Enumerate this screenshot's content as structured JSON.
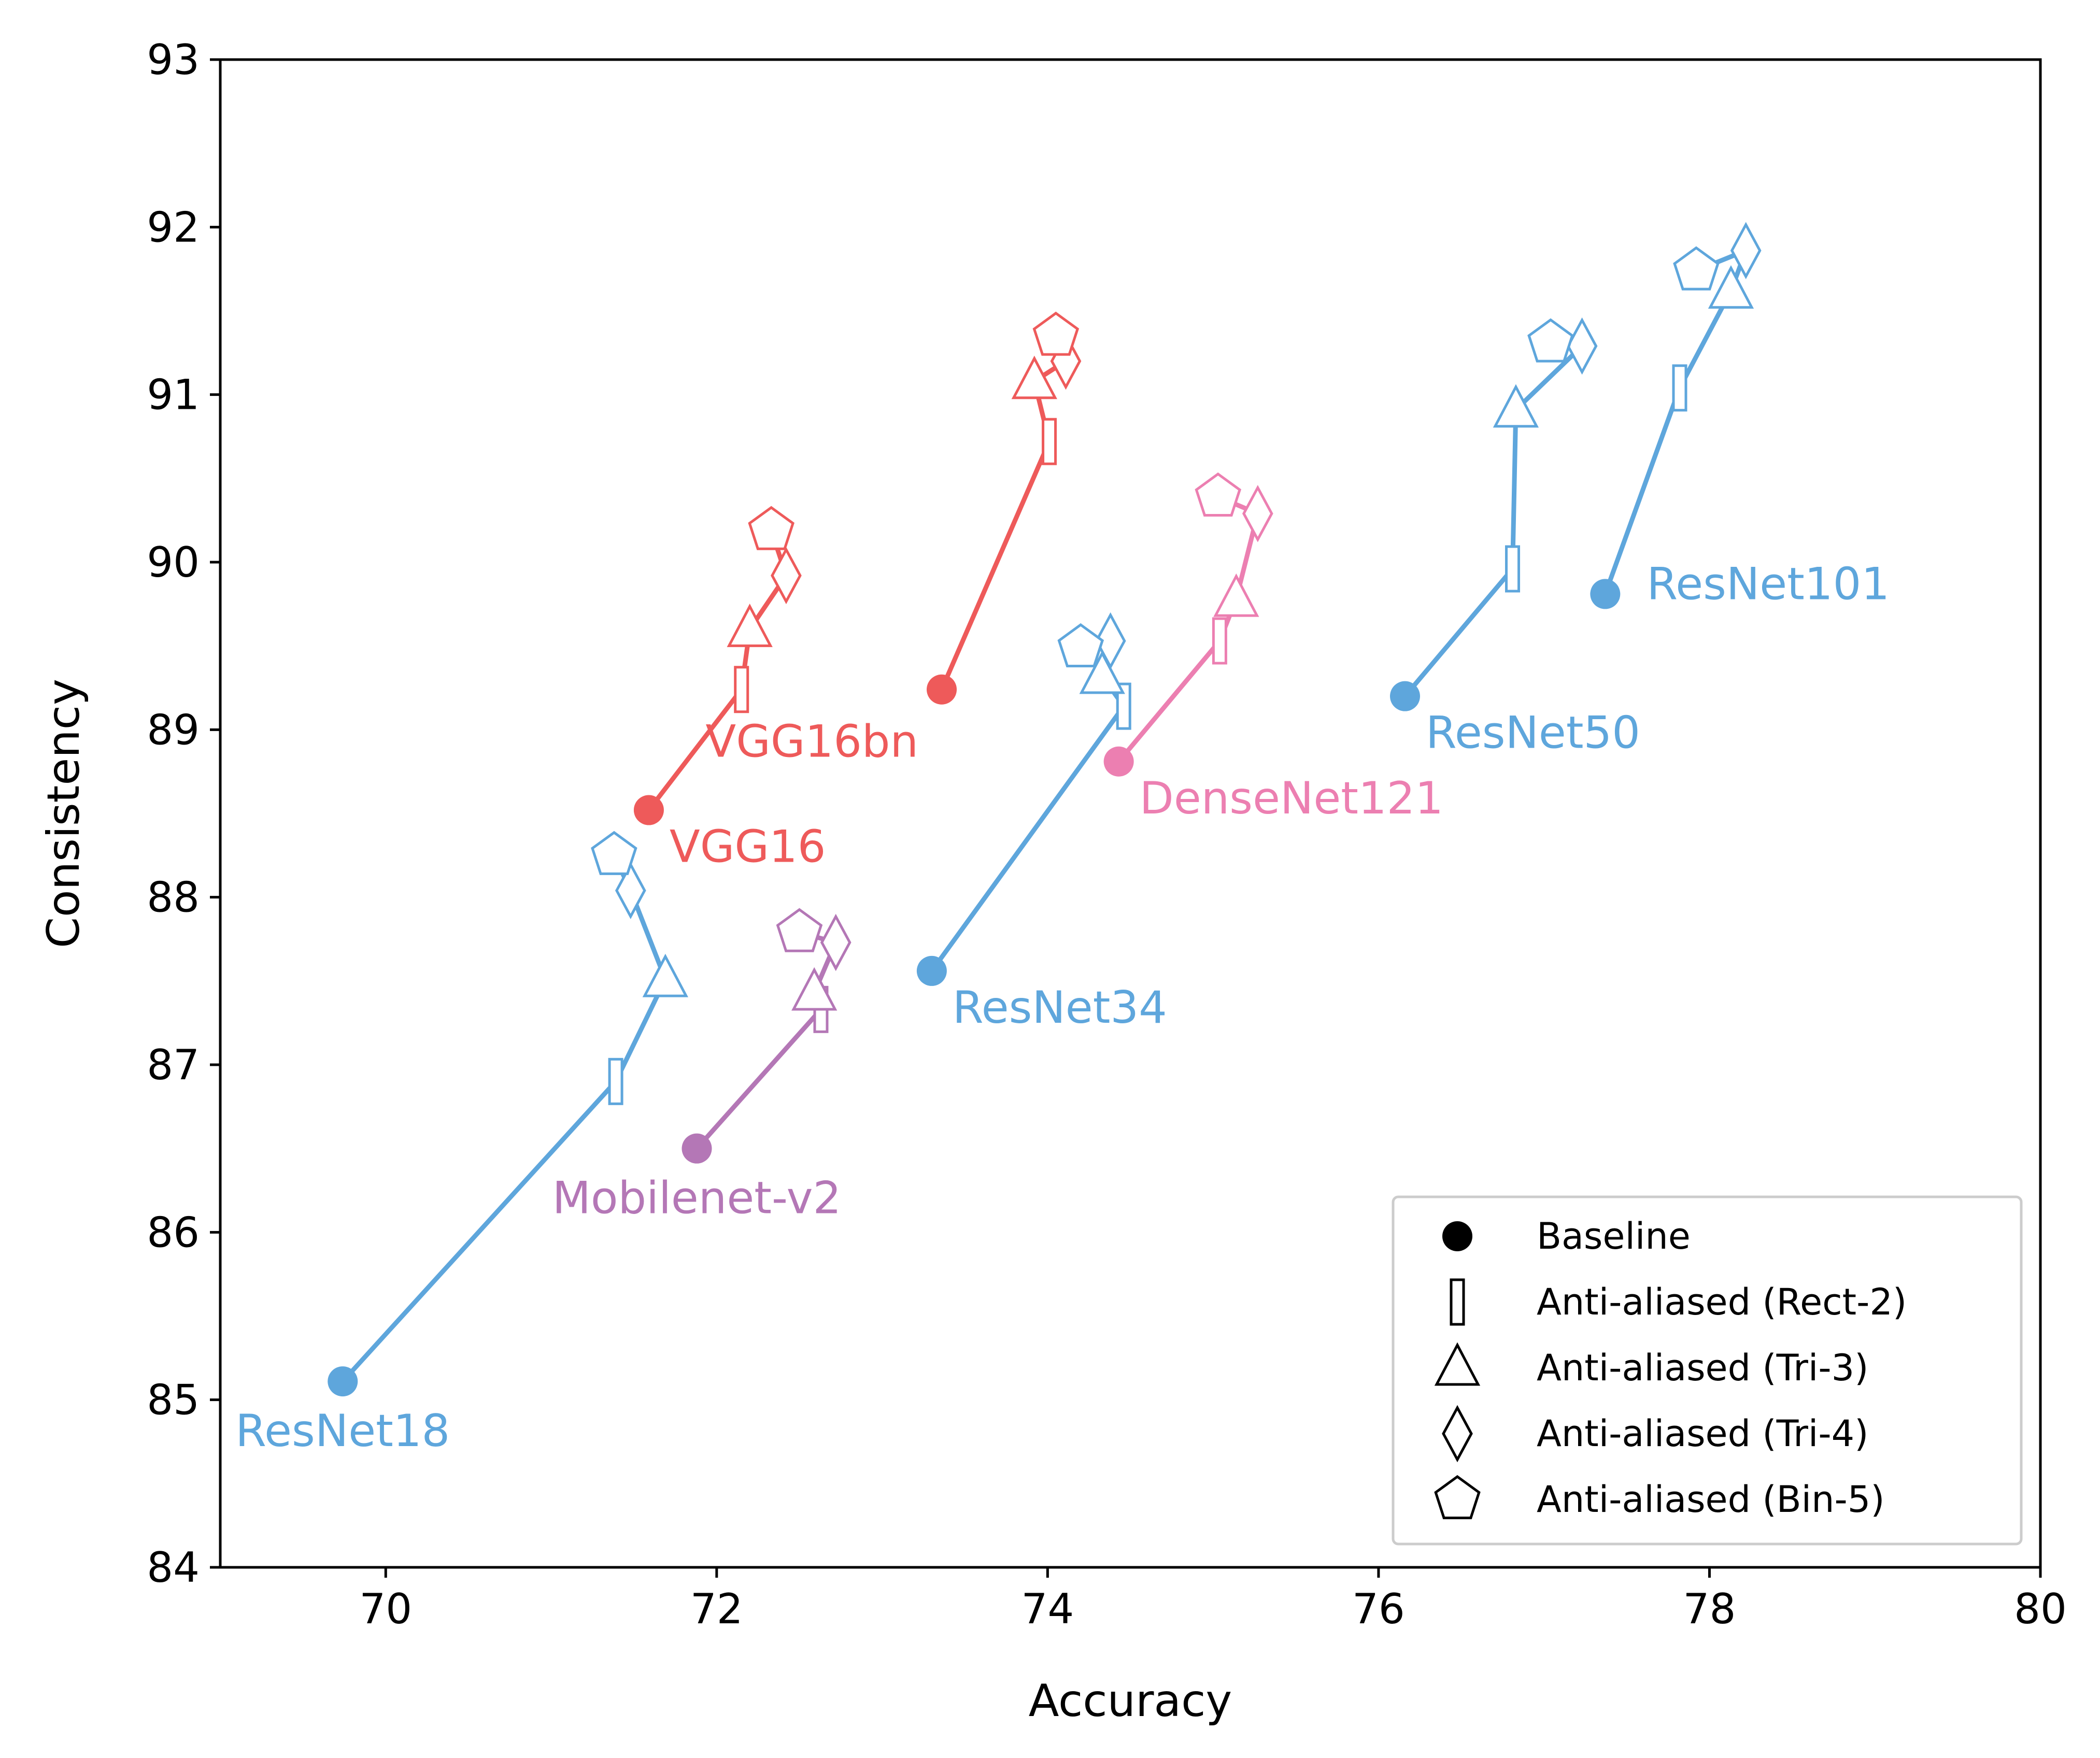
{
  "chart_data": {
    "type": "line",
    "title": "",
    "xlabel": "Accuracy",
    "ylabel": "Consistency",
    "xlim": [
      69,
      80
    ],
    "ylim": [
      84,
      93
    ],
    "xticks": [
      "70",
      "72",
      "74",
      "76",
      "78",
      "80"
    ],
    "yticks": [
      "84",
      "85",
      "86",
      "87",
      "88",
      "89",
      "90",
      "91",
      "92",
      "93"
    ],
    "grid": false,
    "legend_position": "bottom-right",
    "legend": [
      {
        "marker": "baseline",
        "label": "Baseline"
      },
      {
        "marker": "rect",
        "label": "Anti-aliased (Rect-2)"
      },
      {
        "marker": "triangle",
        "label": "Anti-aliased (Tri-3)"
      },
      {
        "marker": "diamond",
        "label": "Anti-aliased (Tri-4)"
      },
      {
        "marker": "pentagon",
        "label": "Anti-aliased (Bin-5)"
      }
    ],
    "series": [
      {
        "name": "VGG16",
        "color": "#ee5a5a",
        "label_pos": "below-right",
        "points": [
          {
            "marker": "baseline",
            "x": 71.59,
            "y": 88.52
          },
          {
            "marker": "rect",
            "x": 72.15,
            "y": 89.24
          },
          {
            "marker": "triangle",
            "x": 72.2,
            "y": 89.6
          },
          {
            "marker": "diamond",
            "x": 72.42,
            "y": 89.92
          },
          {
            "marker": "pentagon",
            "x": 72.33,
            "y": 90.19
          }
        ]
      },
      {
        "name": "VGG16bn",
        "color": "#ee5a5a",
        "label_pos": "below-left",
        "points": [
          {
            "marker": "baseline",
            "x": 73.36,
            "y": 89.24
          },
          {
            "marker": "rect",
            "x": 74.01,
            "y": 90.72
          },
          {
            "marker": "triangle",
            "x": 73.92,
            "y": 91.08
          },
          {
            "marker": "diamond",
            "x": 74.11,
            "y": 91.2
          },
          {
            "marker": "pentagon",
            "x": 74.05,
            "y": 91.35
          }
        ]
      },
      {
        "name": "ResNet18",
        "color": "#5ea6dc",
        "label_pos": "below",
        "points": [
          {
            "marker": "baseline",
            "x": 69.74,
            "y": 85.11
          },
          {
            "marker": "rect",
            "x": 71.39,
            "y": 86.9
          },
          {
            "marker": "triangle",
            "x": 71.69,
            "y": 87.51
          },
          {
            "marker": "diamond",
            "x": 71.48,
            "y": 88.04
          },
          {
            "marker": "pentagon",
            "x": 71.38,
            "y": 88.25
          }
        ]
      },
      {
        "name": "ResNet34",
        "color": "#5ea6dc",
        "label_pos": "below-right",
        "points": [
          {
            "marker": "baseline",
            "x": 73.3,
            "y": 87.56
          },
          {
            "marker": "rect",
            "x": 74.46,
            "y": 89.14
          },
          {
            "marker": "triangle",
            "x": 74.33,
            "y": 89.32
          },
          {
            "marker": "diamond",
            "x": 74.38,
            "y": 89.53
          },
          {
            "marker": "pentagon",
            "x": 74.2,
            "y": 89.49
          }
        ]
      },
      {
        "name": "ResNet50",
        "color": "#5ea6dc",
        "label_pos": "below-right",
        "points": [
          {
            "marker": "baseline",
            "x": 76.16,
            "y": 89.2
          },
          {
            "marker": "rect",
            "x": 76.81,
            "y": 89.96
          },
          {
            "marker": "triangle",
            "x": 76.83,
            "y": 90.91
          },
          {
            "marker": "diamond",
            "x": 77.23,
            "y": 91.29
          },
          {
            "marker": "pentagon",
            "x": 77.04,
            "y": 91.31
          }
        ]
      },
      {
        "name": "ResNet101",
        "color": "#5ea6dc",
        "label_pos": "right",
        "points": [
          {
            "marker": "baseline",
            "x": 77.37,
            "y": 89.81
          },
          {
            "marker": "rect",
            "x": 77.82,
            "y": 91.04
          },
          {
            "marker": "triangle",
            "x": 78.13,
            "y": 91.62
          },
          {
            "marker": "diamond",
            "x": 78.22,
            "y": 91.86
          },
          {
            "marker": "pentagon",
            "x": 77.92,
            "y": 91.74
          }
        ]
      },
      {
        "name": "DenseNet121",
        "color": "#ec7fb1",
        "label_pos": "below-right",
        "points": [
          {
            "marker": "baseline",
            "x": 74.43,
            "y": 88.81
          },
          {
            "marker": "rect",
            "x": 75.04,
            "y": 89.53
          },
          {
            "marker": "triangle",
            "x": 75.14,
            "y": 89.78
          },
          {
            "marker": "diamond",
            "x": 75.27,
            "y": 90.29
          },
          {
            "marker": "pentagon",
            "x": 75.03,
            "y": 90.39
          }
        ]
      },
      {
        "name": "Mobilenet-v2",
        "color": "#b477b6",
        "label_pos": "below",
        "points": [
          {
            "marker": "baseline",
            "x": 71.88,
            "y": 86.5
          },
          {
            "marker": "rect",
            "x": 72.63,
            "y": 87.33
          },
          {
            "marker": "triangle",
            "x": 72.59,
            "y": 87.43
          },
          {
            "marker": "diamond",
            "x": 72.72,
            "y": 87.73
          },
          {
            "marker": "pentagon",
            "x": 72.5,
            "y": 87.79
          }
        ]
      }
    ]
  }
}
